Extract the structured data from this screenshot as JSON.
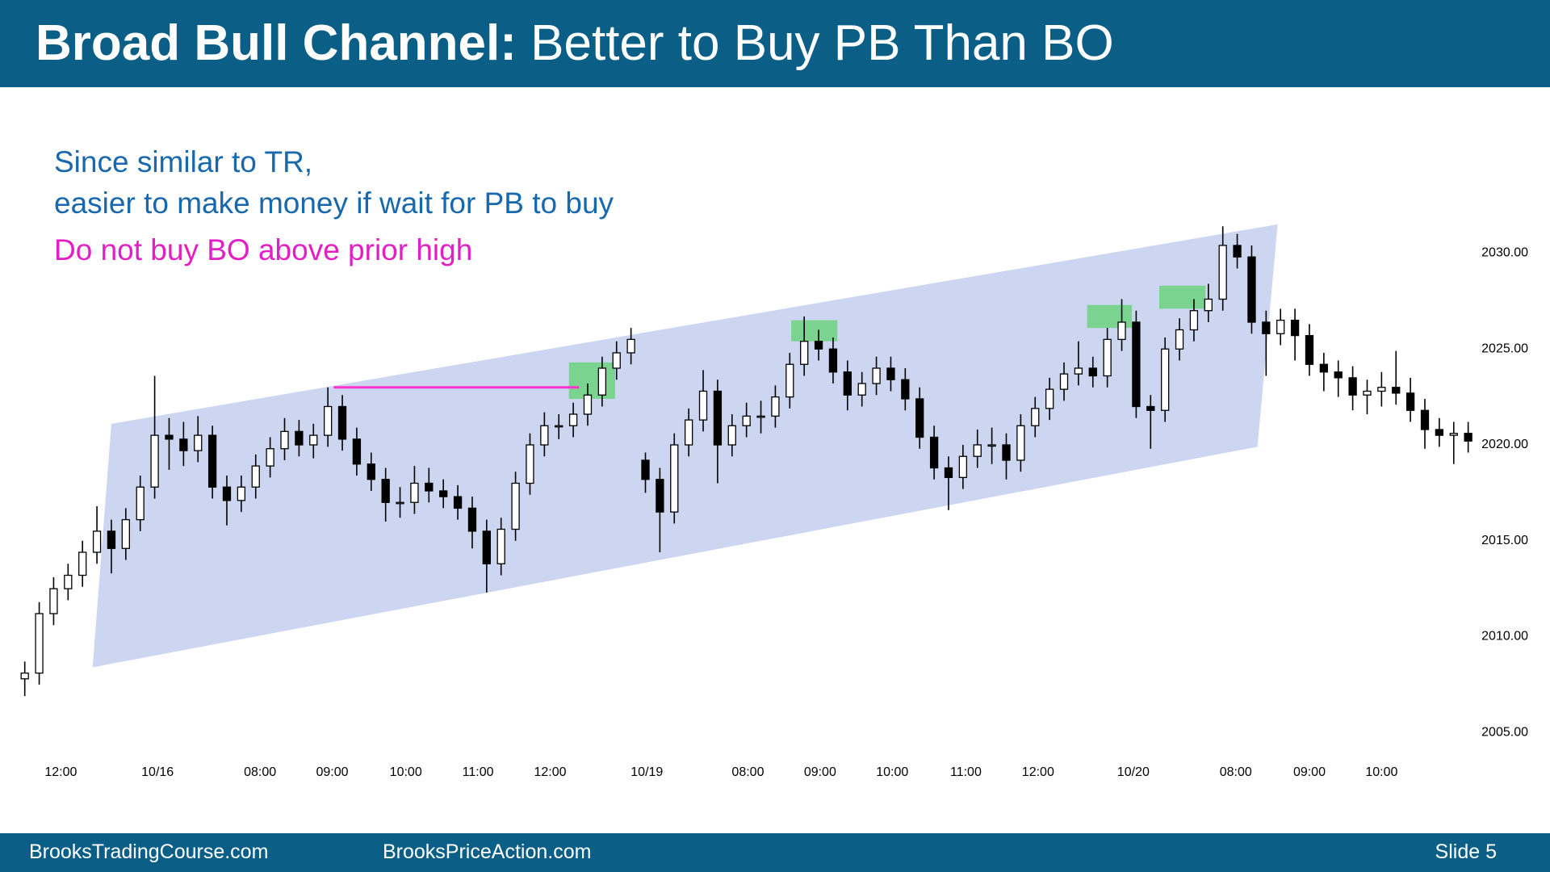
{
  "header": {
    "title_bold": "Broad Bull Channel:",
    "title_rest": "Better to Buy PB Than BO"
  },
  "notes": [
    {
      "text": "Since similar to TR,",
      "color": "#1768ac"
    },
    {
      "text": "easier to make money if wait for PB to buy",
      "color": "#1768ac"
    },
    {
      "text": "Do not buy BO above prior high",
      "color": "#e21fc5"
    }
  ],
  "footer": {
    "left": "BrooksTradingCourse.com",
    "center": "BrooksPriceAction.com",
    "right": "Slide 5"
  },
  "chart_data": {
    "type": "candlestick",
    "up_color": "#ffffff",
    "down_color": "#000000",
    "edge_color": "#000000",
    "xlim": [
      -1,
      102
    ],
    "ylim": [
      2004,
      2032
    ],
    "yticks": [
      {
        "value": 2005,
        "label": "2005.00"
      },
      {
        "value": 2010,
        "label": "2010.00"
      },
      {
        "value": 2015,
        "label": "2015.00"
      },
      {
        "value": 2020,
        "label": "2020.00"
      },
      {
        "value": 2025,
        "label": "2025.00"
      },
      {
        "value": 2030,
        "label": "2030.00"
      }
    ],
    "xticks": [
      {
        "value": 2.5,
        "label": "12:00"
      },
      {
        "value": 9.2,
        "label": "10/16"
      },
      {
        "value": 16.3,
        "label": "08:00"
      },
      {
        "value": 21.3,
        "label": "09:00"
      },
      {
        "value": 26.4,
        "label": "10:00"
      },
      {
        "value": 31.4,
        "label": "11:00"
      },
      {
        "value": 36.4,
        "label": "12:00"
      },
      {
        "value": 43.1,
        "label": "10/19"
      },
      {
        "value": 50.1,
        "label": "08:00"
      },
      {
        "value": 55.1,
        "label": "09:00"
      },
      {
        "value": 60.1,
        "label": "10:00"
      },
      {
        "value": 65.2,
        "label": "11:00"
      },
      {
        "value": 70.2,
        "label": "12:00"
      },
      {
        "value": 76.8,
        "label": "10/20"
      },
      {
        "value": 83.9,
        "label": "08:00"
      },
      {
        "value": 89.0,
        "label": "09:00"
      },
      {
        "value": 94.0,
        "label": "10:00"
      }
    ],
    "open": [
      2007.8,
      2008.1,
      2011.2,
      2012.5,
      2013.2,
      2014.4,
      2015.5,
      2014.6,
      2016.1,
      2017.8,
      2020.5,
      2020.3,
      2019.7,
      2020.5,
      2017.8,
      2017.1,
      2017.8,
      2018.9,
      2019.8,
      2020.7,
      2020.0,
      2020.5,
      2022.0,
      2020.3,
      2019.0,
      2018.2,
      2017.0,
      2017.0,
      2018.0,
      2017.6,
      2017.3,
      2016.7,
      2015.5,
      2013.8,
      2015.6,
      2018.0,
      2020.0,
      2021.0,
      2021.0,
      2021.6,
      2022.6,
      2024.0,
      2024.8,
      2019.2,
      2018.2,
      2016.5,
      2020.0,
      2021.3,
      2022.8,
      2020.0,
      2021.0,
      2021.5,
      2021.5,
      2022.5,
      2024.2,
      2025.4,
      2025.0,
      2023.8,
      2022.6,
      2023.2,
      2024.0,
      2023.4,
      2022.4,
      2020.4,
      2018.8,
      2018.3,
      2019.4,
      2020.0,
      2020.0,
      2019.2,
      2021.0,
      2021.9,
      2022.9,
      2023.7,
      2024.0,
      2023.6,
      2025.5,
      2026.4,
      2022.0,
      2021.8,
      2025.0,
      2026.0,
      2027.0,
      2027.6,
      2030.4,
      2029.8,
      2026.4,
      2025.8,
      2026.5,
      2025.7,
      2024.2,
      2023.8,
      2023.5,
      2022.6,
      2022.8,
      2023.0,
      2022.7,
      2021.8,
      2020.8,
      2020.5,
      2020.6
    ],
    "high": [
      2008.7,
      2011.8,
      2013.1,
      2013.8,
      2015.0,
      2016.8,
      2016.1,
      2016.7,
      2018.4,
      2023.6,
      2021.4,
      2021.2,
      2021.5,
      2021.0,
      2018.4,
      2018.4,
      2019.5,
      2020.4,
      2021.4,
      2021.3,
      2021.1,
      2023.0,
      2022.6,
      2020.9,
      2019.6,
      2018.8,
      2017.8,
      2018.9,
      2018.8,
      2018.2,
      2017.9,
      2017.3,
      2016.1,
      2016.2,
      2018.6,
      2020.6,
      2021.7,
      2021.6,
      2022.2,
      2023.2,
      2024.6,
      2025.4,
      2026.1,
      2019.6,
      2018.8,
      2020.6,
      2021.9,
      2023.9,
      2023.4,
      2021.6,
      2022.2,
      2022.3,
      2023.1,
      2024.8,
      2026.7,
      2026.0,
      2025.6,
      2024.4,
      2023.8,
      2024.6,
      2024.6,
      2024.0,
      2023.0,
      2021.0,
      2019.4,
      2020.0,
      2020.8,
      2020.9,
      2020.6,
      2021.6,
      2022.5,
      2023.5,
      2024.3,
      2025.4,
      2024.6,
      2026.1,
      2027.6,
      2027.0,
      2022.6,
      2025.6,
      2026.6,
      2027.6,
      2028.4,
      2031.4,
      2031.0,
      2030.4,
      2027.0,
      2027.1,
      2027.1,
      2026.3,
      2024.8,
      2024.4,
      2024.1,
      2023.4,
      2023.8,
      2024.9,
      2023.5,
      2022.4,
      2021.4,
      2021.2,
      2021.2
    ],
    "low": [
      2006.9,
      2007.5,
      2010.6,
      2011.9,
      2012.6,
      2013.8,
      2013.3,
      2014.0,
      2015.5,
      2017.2,
      2018.7,
      2018.9,
      2019.1,
      2017.2,
      2015.8,
      2016.5,
      2017.2,
      2018.3,
      2019.2,
      2019.4,
      2019.3,
      2019.9,
      2019.7,
      2018.4,
      2017.6,
      2016.0,
      2016.2,
      2016.4,
      2017.0,
      2016.7,
      2016.1,
      2014.6,
      2012.3,
      2013.2,
      2015.0,
      2017.4,
      2019.4,
      2020.3,
      2020.4,
      2021.0,
      2022.0,
      2023.4,
      2024.2,
      2017.5,
      2014.4,
      2015.9,
      2019.4,
      2020.7,
      2018.0,
      2019.4,
      2020.4,
      2020.6,
      2020.9,
      2021.9,
      2023.6,
      2024.4,
      2023.2,
      2021.8,
      2022.0,
      2022.6,
      2022.8,
      2021.8,
      2019.8,
      2018.2,
      2016.6,
      2017.7,
      2018.8,
      2019.0,
      2018.2,
      2018.6,
      2020.4,
      2021.3,
      2022.3,
      2023.1,
      2023.0,
      2023.0,
      2024.9,
      2021.4,
      2019.8,
      2021.2,
      2024.4,
      2025.4,
      2026.4,
      2027.0,
      2029.2,
      2025.8,
      2023.6,
      2025.2,
      2024.4,
      2023.6,
      2022.8,
      2022.5,
      2021.8,
      2021.6,
      2022.0,
      2022.1,
      2021.2,
      2019.8,
      2019.9,
      2019.0,
      2019.6
    ],
    "close": [
      2008.1,
      2011.2,
      2012.5,
      2013.2,
      2014.4,
      2015.5,
      2014.6,
      2016.1,
      2017.8,
      2020.5,
      2020.3,
      2019.7,
      2020.5,
      2017.8,
      2017.1,
      2017.8,
      2018.9,
      2019.8,
      2020.7,
      2020.0,
      2020.5,
      2022.0,
      2020.3,
      2019.0,
      2018.2,
      2017.0,
      2017.0,
      2018.0,
      2017.6,
      2017.3,
      2016.7,
      2015.5,
      2013.8,
      2015.6,
      2018.0,
      2020.0,
      2021.0,
      2021.0,
      2021.6,
      2022.6,
      2024.0,
      2024.8,
      2025.5,
      2018.2,
      2016.5,
      2020.0,
      2021.3,
      2022.8,
      2020.0,
      2021.0,
      2021.5,
      2021.5,
      2022.5,
      2024.2,
      2025.4,
      2025.0,
      2023.8,
      2022.6,
      2023.2,
      2024.0,
      2023.4,
      2022.4,
      2020.4,
      2018.8,
      2018.3,
      2019.4,
      2020.0,
      2020.0,
      2019.2,
      2021.0,
      2021.9,
      2022.9,
      2023.7,
      2024.0,
      2023.6,
      2025.5,
      2026.4,
      2022.0,
      2021.8,
      2025.0,
      2026.0,
      2027.0,
      2027.6,
      2030.4,
      2029.8,
      2026.4,
      2025.8,
      2026.5,
      2025.7,
      2024.2,
      2023.8,
      2023.5,
      2022.6,
      2022.8,
      2023.0,
      2022.7,
      2021.8,
      2020.8,
      2020.5,
      2020.6,
      2020.2
    ],
    "channel": {
      "x": [
        6.0,
        86.8,
        85.4,
        4.7
      ],
      "y": [
        2021.1,
        2031.5,
        2019.9,
        2008.4
      ],
      "color": "#c7d1f0"
    },
    "level_line": {
      "x": [
        21.4,
        38.4
      ],
      "y": 2023.0,
      "color": "#ff33cc"
    },
    "highlight_color": "#5fd36f",
    "highlight_boxes": [
      {
        "x": [
          37.7,
          40.9
        ],
        "y": [
          2022.4,
          2024.3
        ]
      },
      {
        "x": [
          53.1,
          56.3
        ],
        "y": [
          2025.4,
          2026.5
        ]
      },
      {
        "x": [
          73.6,
          76.7
        ],
        "y": [
          2026.1,
          2027.3
        ]
      },
      {
        "x": [
          78.6,
          81.8
        ],
        "y": [
          2027.1,
          2028.3
        ]
      }
    ]
  }
}
